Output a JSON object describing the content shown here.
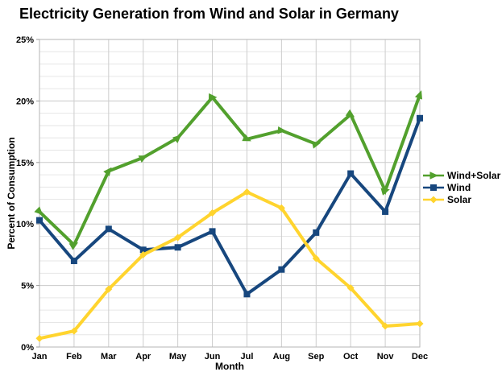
{
  "chart_data": {
    "type": "line",
    "title": "Electricity Generation from Wind and Solar in Germany",
    "xlabel": "Month",
    "ylabel": "Percent of Consumption",
    "categories": [
      "Jan",
      "Feb",
      "Mar",
      "Apr",
      "May",
      "Jun",
      "Jul",
      "Aug",
      "Sep",
      "Oct",
      "Nov",
      "Dec"
    ],
    "series": [
      {
        "name": "Wind+Solar",
        "color": "#52A02D",
        "marker": "triangle",
        "values": [
          11.0,
          8.3,
          14.3,
          15.4,
          17.0,
          20.3,
          16.9,
          17.6,
          16.5,
          18.9,
          12.7,
          20.5
        ]
      },
      {
        "name": "Wind",
        "color": "#17477E",
        "marker": "square",
        "values": [
          10.3,
          7.0,
          9.6,
          7.9,
          8.1,
          9.4,
          4.3,
          6.3,
          9.3,
          14.1,
          11.0,
          18.6
        ]
      },
      {
        "name": "Solar",
        "color": "#FFD42E",
        "marker": "diamond",
        "values": [
          0.7,
          1.3,
          4.7,
          7.5,
          8.9,
          10.9,
          12.6,
          11.3,
          7.2,
          4.8,
          1.7,
          1.9
        ]
      }
    ],
    "ylim": [
      0,
      25
    ],
    "ytick_major": 5,
    "ytick_minor": 1,
    "ytick_labels": [
      "0%",
      "5%",
      "10%",
      "15%",
      "20%",
      "25%"
    ],
    "grid": true,
    "legend_position": "right",
    "grid_minor_color": "#e6e6e6",
    "grid_major_color": "#c9c9c9",
    "grid_vertical_color": "#cdcdcd",
    "plot_border_color": "#b5b5b5"
  }
}
